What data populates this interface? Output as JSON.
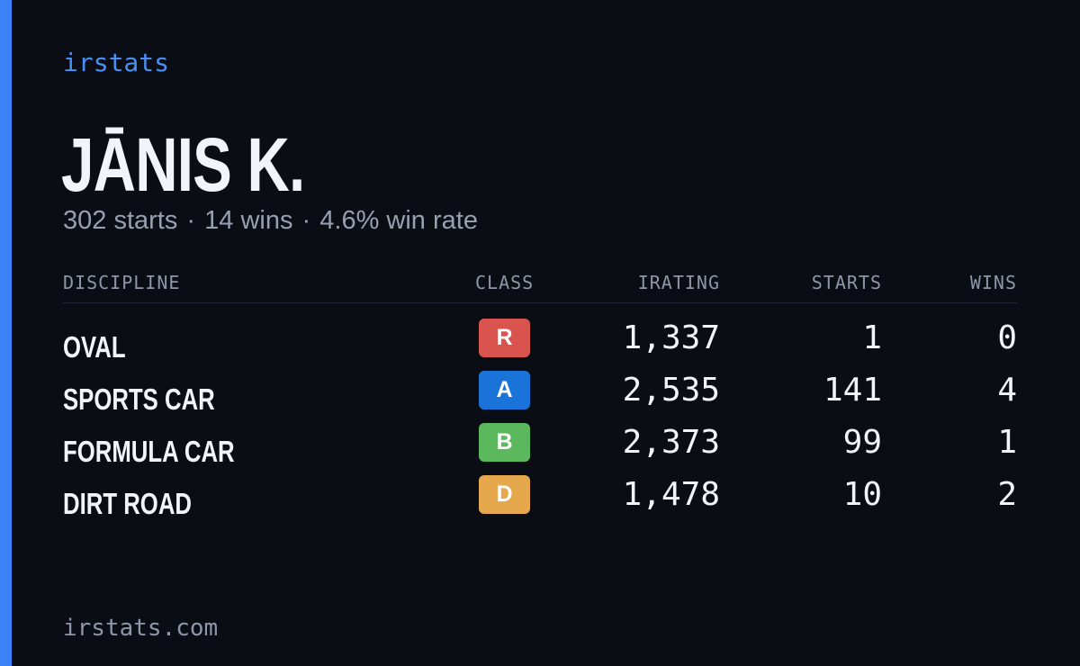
{
  "brand": "irstats",
  "driver": {
    "name": "JĀNIS K.",
    "starts_text": "302 starts",
    "wins_text": "14 wins",
    "winrate_text": "4.6% win rate",
    "separator": "·"
  },
  "colors": {
    "accent": "#3b82f6",
    "background": "#0a0d14",
    "class_R": "#d9534f",
    "class_A": "#1a73d9",
    "class_B": "#5cb85c",
    "class_D": "#e6a84c"
  },
  "table": {
    "headers": {
      "discipline": "DISCIPLINE",
      "class": "CLASS",
      "irating": "IRATING",
      "starts": "STARTS",
      "wins": "WINS"
    },
    "rows": [
      {
        "discipline": "OVAL",
        "class": "R",
        "class_color": "#d9534f",
        "irating": "1,337",
        "starts": "1",
        "wins": "0"
      },
      {
        "discipline": "SPORTS CAR",
        "class": "A",
        "class_color": "#1a73d9",
        "irating": "2,535",
        "starts": "141",
        "wins": "4"
      },
      {
        "discipline": "FORMULA CAR",
        "class": "B",
        "class_color": "#5cb85c",
        "irating": "2,373",
        "starts": "99",
        "wins": "1"
      },
      {
        "discipline": "DIRT ROAD",
        "class": "D",
        "class_color": "#e6a84c",
        "irating": "1,478",
        "starts": "10",
        "wins": "2"
      }
    ]
  },
  "footer": "irstats.com"
}
